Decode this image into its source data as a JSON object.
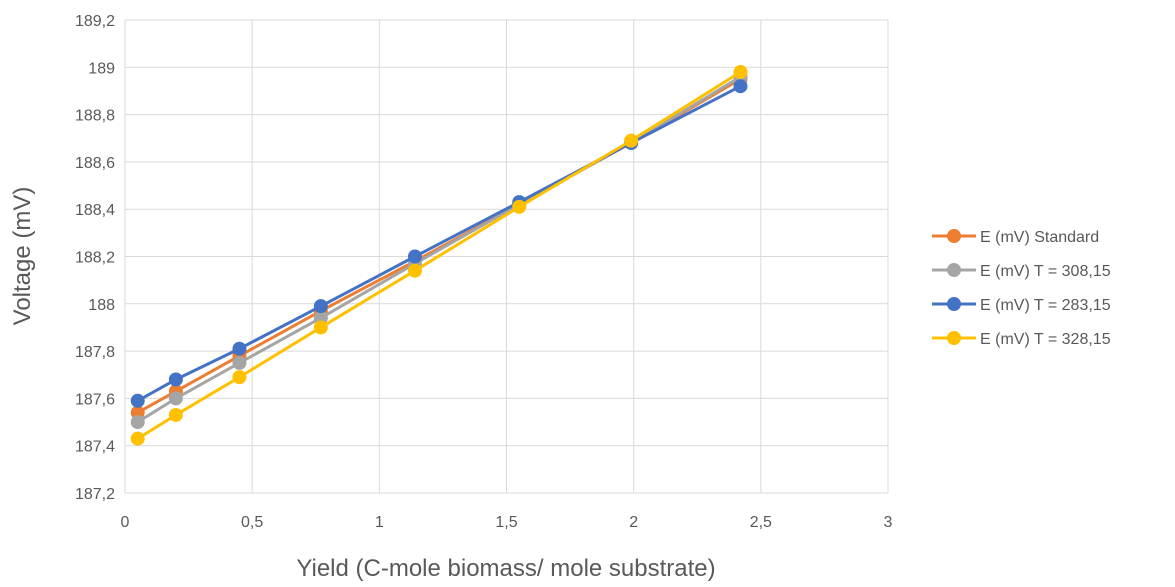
{
  "chart_data": {
    "type": "line",
    "title": "",
    "xlabel": "Yield (C-mole biomass/ mole substrate)",
    "ylabel": "Voltage (mV)",
    "xlim": [
      0,
      3
    ],
    "ylim": [
      187.2,
      189.2
    ],
    "x_ticks": [
      "0",
      "0,5",
      "1",
      "1,5",
      "2",
      "2,5",
      "3"
    ],
    "y_ticks": [
      "187,2",
      "187,4",
      "187,6",
      "187,8",
      "188",
      "188,2",
      "188,4",
      "188,6",
      "188,8",
      "189",
      "189,2"
    ],
    "grid": true,
    "legend_position": "right",
    "x": [
      0.05,
      0.2,
      0.45,
      0.77,
      1.14,
      1.55,
      1.99,
      2.42
    ],
    "series": [
      {
        "name": "E (mV) Standard",
        "color": "#ED7D31",
        "values": [
          187.54,
          187.63,
          187.78,
          187.97,
          188.18,
          188.42,
          188.68,
          188.95
        ]
      },
      {
        "name": "E (mV) T = 308,15",
        "color": "#A5A5A5",
        "values": [
          187.5,
          187.6,
          187.75,
          187.94,
          188.17,
          188.42,
          188.68,
          188.96
        ]
      },
      {
        "name": "E (mV) T = 283,15",
        "color": "#4472C4",
        "values": [
          187.59,
          187.68,
          187.81,
          187.99,
          188.2,
          188.43,
          188.68,
          188.92
        ]
      },
      {
        "name": "E (mV) T = 328,15",
        "color": "#FFC000",
        "values": [
          187.43,
          187.53,
          187.69,
          187.9,
          188.14,
          188.41,
          188.69,
          188.98
        ]
      }
    ]
  }
}
